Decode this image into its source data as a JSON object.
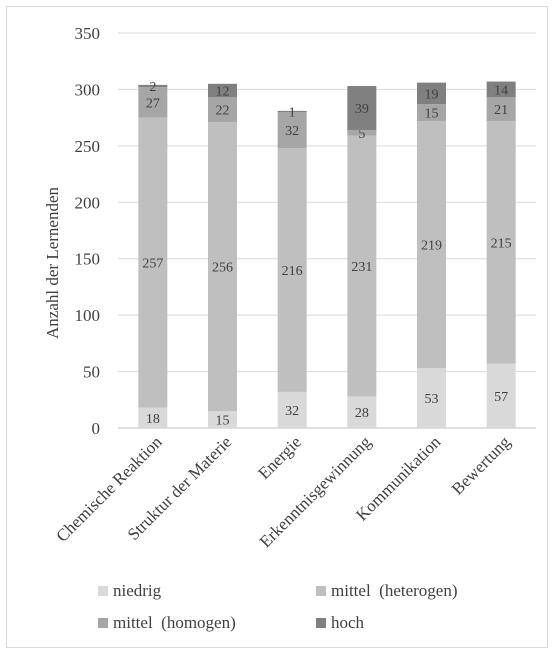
{
  "chart_data": {
    "type": "bar",
    "stacked": true,
    "title": "",
    "xlabel": "",
    "ylabel": "Anzahl der Lernenden",
    "ylim": [
      0,
      350
    ],
    "yticks": [
      0,
      50,
      100,
      150,
      200,
      250,
      300,
      350
    ],
    "grid": true,
    "legend_position": "bottom",
    "categories": [
      "Chemische Reaktion",
      "Struktur der Materie",
      "Energie",
      "Erkenntnisgewinnung",
      "Kommunikation",
      "Bewertung"
    ],
    "series": [
      {
        "name": "niedrig",
        "color": "#d9d9d9",
        "values": [
          18,
          15,
          32,
          28,
          53,
          57
        ]
      },
      {
        "name": "mittel  (heterogen)",
        "color": "#bfbfbf",
        "values": [
          257,
          256,
          216,
          231,
          219,
          215
        ]
      },
      {
        "name": "mittel  (homogen)",
        "color": "#a6a6a6",
        "values": [
          27,
          22,
          32,
          5,
          15,
          21
        ]
      },
      {
        "name": "hoch",
        "color": "#808080",
        "values": [
          2,
          12,
          1,
          39,
          19,
          14
        ]
      }
    ]
  }
}
